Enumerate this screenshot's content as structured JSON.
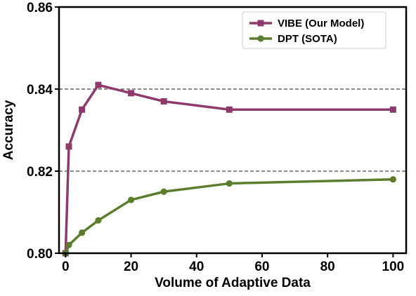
{
  "chart_data": {
    "type": "line",
    "title": "",
    "xlabel": "Volume of Adaptive Data",
    "ylabel": "Accuracy",
    "xlim": [
      -2,
      104
    ],
    "ylim": [
      0.8,
      0.86
    ],
    "xticks": [
      0,
      20,
      40,
      60,
      80,
      100
    ],
    "xtick_labels": [
      "0",
      "20",
      "40",
      "60",
      "80",
      "100"
    ],
    "yticks": [
      0.8,
      0.82,
      0.84,
      0.86
    ],
    "ytick_labels": [
      "0.80",
      "0.82",
      "0.84",
      "0.86"
    ],
    "grid": {
      "axis": "y",
      "style": "dashed",
      "at": [
        0.82,
        0.84
      ]
    },
    "legend_position": "top-right",
    "series": [
      {
        "name": "VIBE (Our Model)",
        "color": "#8e3a6c",
        "marker": "square",
        "x": [
          0,
          1,
          5,
          10,
          20,
          30,
          50,
          100
        ],
        "y": [
          0.8,
          0.826,
          0.835,
          0.841,
          0.839,
          0.837,
          0.835,
          0.835
        ]
      },
      {
        "name": "DPT (SOTA)",
        "color": "#5a7d2e",
        "marker": "circle",
        "x": [
          0,
          1,
          5,
          10,
          20,
          30,
          50,
          100
        ],
        "y": [
          0.8,
          0.802,
          0.805,
          0.808,
          0.813,
          0.815,
          0.817,
          0.818
        ]
      }
    ]
  }
}
